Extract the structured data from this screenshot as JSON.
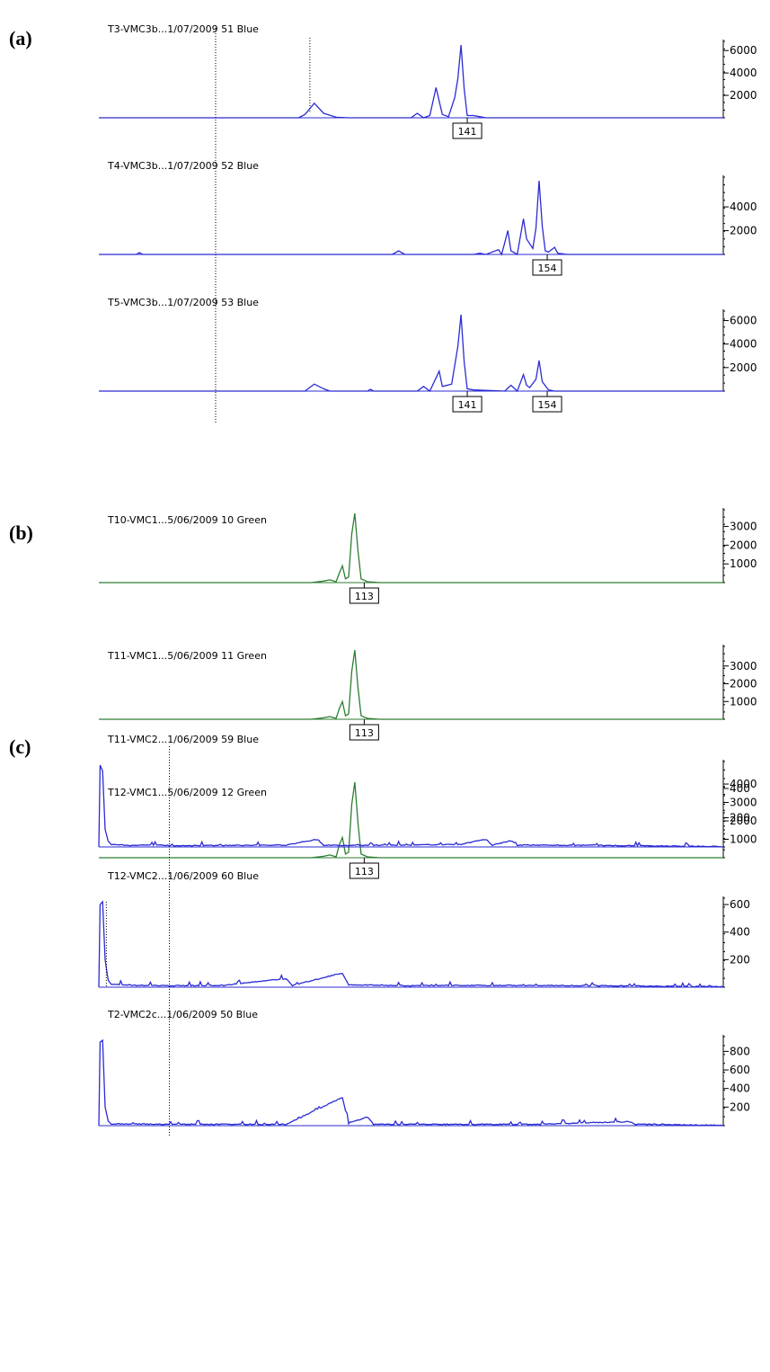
{
  "colors": {
    "blue": "#2b2bd4",
    "green": "#2e7d32",
    "axis": "#000000",
    "marker": "#000000"
  },
  "chart_data": [
    {
      "panel": "(a)",
      "type": "line",
      "traces": [
        {
          "title": "T3-VMC3b...1/07/2009 51 Blue",
          "color": "blue",
          "ymax": 6500,
          "yticks": [
            "6000",
            "4000",
            "2000"
          ],
          "ytick_values": [
            6000,
            4000,
            2000
          ],
          "points": [
            [
              0,
              0
            ],
            [
              0.32,
              0
            ],
            [
              0.33,
              300
            ],
            [
              0.345,
              1300
            ],
            [
              0.36,
              400
            ],
            [
              0.38,
              50
            ],
            [
              0.4,
              0
            ],
            [
              0.5,
              0
            ],
            [
              0.51,
              400
            ],
            [
              0.52,
              0
            ],
            [
              0.53,
              200
            ],
            [
              0.54,
              2700
            ],
            [
              0.55,
              300
            ],
            [
              0.56,
              100
            ],
            [
              0.57,
              1800
            ],
            [
              0.575,
              3500
            ],
            [
              0.58,
              6500
            ],
            [
              0.585,
              2600
            ],
            [
              0.59,
              200
            ],
            [
              0.6,
              200
            ],
            [
              0.61,
              100
            ],
            [
              0.62,
              0
            ],
            [
              1,
              0
            ]
          ],
          "markers": [
            {
              "label": "141",
              "x": 0.567
            }
          ]
        },
        {
          "title": "T4-VMC3b...1/07/2009 52 Blue",
          "color": "blue",
          "ymax": 6200,
          "yticks": [
            "4000",
            "2000"
          ],
          "ytick_values": [
            4000,
            2000
          ],
          "points": [
            [
              0,
              0
            ],
            [
              0.06,
              0
            ],
            [
              0.065,
              150
            ],
            [
              0.07,
              0
            ],
            [
              0.47,
              0
            ],
            [
              0.48,
              300
            ],
            [
              0.49,
              0
            ],
            [
              0.6,
              0
            ],
            [
              0.61,
              100
            ],
            [
              0.62,
              0
            ],
            [
              0.64,
              400
            ],
            [
              0.645,
              0
            ],
            [
              0.65,
              1000
            ],
            [
              0.655,
              2000
            ],
            [
              0.66,
              300
            ],
            [
              0.67,
              0
            ],
            [
              0.68,
              3000
            ],
            [
              0.685,
              1300
            ],
            [
              0.695,
              500
            ],
            [
              0.7,
              2200
            ],
            [
              0.705,
              6200
            ],
            [
              0.71,
              2400
            ],
            [
              0.715,
              300
            ],
            [
              0.72,
              200
            ],
            [
              0.73,
              600
            ],
            [
              0.735,
              100
            ],
            [
              0.75,
              0
            ],
            [
              1,
              0
            ]
          ],
          "markers": [
            {
              "label": "154",
              "x": 0.695
            }
          ]
        },
        {
          "title": "T5-VMC3b...1/07/2009 53 Blue",
          "color": "blue",
          "ymax": 6500,
          "yticks": [
            "6000",
            "4000",
            "2000"
          ],
          "ytick_values": [
            6000,
            4000,
            2000
          ],
          "points": [
            [
              0,
              0
            ],
            [
              0.33,
              0
            ],
            [
              0.345,
              600
            ],
            [
              0.36,
              200
            ],
            [
              0.37,
              0
            ],
            [
              0.43,
              0
            ],
            [
              0.435,
              150
            ],
            [
              0.44,
              0
            ],
            [
              0.51,
              0
            ],
            [
              0.52,
              400
            ],
            [
              0.53,
              0
            ],
            [
              0.545,
              1700
            ],
            [
              0.55,
              400
            ],
            [
              0.565,
              600
            ],
            [
              0.575,
              3800
            ],
            [
              0.58,
              6500
            ],
            [
              0.585,
              2500
            ],
            [
              0.59,
              200
            ],
            [
              0.6,
              100
            ],
            [
              0.65,
              0
            ],
            [
              0.66,
              500
            ],
            [
              0.67,
              0
            ],
            [
              0.68,
              1400
            ],
            [
              0.685,
              500
            ],
            [
              0.69,
              300
            ],
            [
              0.7,
              1000
            ],
            [
              0.705,
              2600
            ],
            [
              0.71,
              800
            ],
            [
              0.72,
              100
            ],
            [
              0.73,
              0
            ],
            [
              1,
              0
            ]
          ],
          "markers": [
            {
              "label": "141",
              "x": 0.567
            },
            {
              "label": "154",
              "x": 0.695
            }
          ]
        }
      ],
      "dotted_lines_x": [
        0.187,
        0.338
      ]
    },
    {
      "panel": "(b)",
      "type": "line",
      "traces": [
        {
          "title": "T10-VMC1...5/06/2009 10 Green",
          "color": "green",
          "ymax": 3700,
          "yticks": [
            "3000",
            "2000",
            "1000"
          ],
          "ytick_values": [
            3000,
            2000,
            1000
          ],
          "points": [
            [
              0,
              0
            ],
            [
              0.34,
              0
            ],
            [
              0.36,
              80
            ],
            [
              0.37,
              150
            ],
            [
              0.38,
              50
            ],
            [
              0.385,
              500
            ],
            [
              0.39,
              900
            ],
            [
              0.395,
              200
            ],
            [
              0.4,
              300
            ],
            [
              0.405,
              2600
            ],
            [
              0.41,
              3700
            ],
            [
              0.415,
              1700
            ],
            [
              0.42,
              200
            ],
            [
              0.43,
              50
            ],
            [
              0.45,
              0
            ],
            [
              1,
              0
            ]
          ],
          "markers": [
            {
              "label": "113",
              "x": 0.402
            }
          ]
        },
        {
          "title": "T11-VMC1...5/06/2009 11 Green",
          "color": "green",
          "ymax": 3900,
          "yticks": [
            "3000",
            "2000",
            "1000"
          ],
          "ytick_values": [
            3000,
            2000,
            1000
          ],
          "points": [
            [
              0,
              0
            ],
            [
              0.34,
              0
            ],
            [
              0.36,
              80
            ],
            [
              0.37,
              150
            ],
            [
              0.38,
              50
            ],
            [
              0.385,
              600
            ],
            [
              0.39,
              1000
            ],
            [
              0.395,
              200
            ],
            [
              0.4,
              300
            ],
            [
              0.405,
              2700
            ],
            [
              0.41,
              3900
            ],
            [
              0.415,
              1800
            ],
            [
              0.42,
              200
            ],
            [
              0.43,
              50
            ],
            [
              0.45,
              0
            ],
            [
              1,
              0
            ]
          ],
          "markers": [
            {
              "label": "113",
              "x": 0.402
            }
          ]
        },
        {
          "title": "T12-VMC1...5/06/2009 12 Green",
          "color": "green",
          "ymax": 4100,
          "yticks": [
            "4000",
            "3000",
            "2000",
            "1000"
          ],
          "ytick_values": [
            4000,
            3000,
            2000,
            1000
          ],
          "points": [
            [
              0,
              0
            ],
            [
              0.34,
              0
            ],
            [
              0.36,
              80
            ],
            [
              0.37,
              150
            ],
            [
              0.38,
              50
            ],
            [
              0.385,
              700
            ],
            [
              0.39,
              1100
            ],
            [
              0.395,
              200
            ],
            [
              0.4,
              300
            ],
            [
              0.405,
              2900
            ],
            [
              0.41,
              4100
            ],
            [
              0.415,
              1900
            ],
            [
              0.42,
              200
            ],
            [
              0.43,
              50
            ],
            [
              0.45,
              0
            ],
            [
              1,
              0
            ]
          ],
          "markers": [
            {
              "label": "113",
              "x": 0.402
            }
          ]
        }
      ]
    },
    {
      "panel": "(c)",
      "type": "line",
      "traces": [
        {
          "title": "T11-VMC2...1/06/2009 59 Blue",
          "color": "blue",
          "ymax": 560,
          "yticks": [
            "400",
            "200"
          ],
          "ytick_values": [
            400,
            200
          ],
          "points": [
            [
              0,
              0
            ],
            [
              0.002,
              560
            ],
            [
              0.006,
              520
            ],
            [
              0.01,
              120
            ],
            [
              0.015,
              40
            ],
            [
              0.02,
              15
            ],
            [
              0.05,
              8
            ],
            [
              0.08,
              12
            ],
            [
              0.12,
              6
            ],
            [
              0.2,
              8
            ],
            [
              0.3,
              10
            ],
            [
              0.35,
              50
            ],
            [
              0.36,
              10
            ],
            [
              0.4,
              8
            ],
            [
              0.5,
              10
            ],
            [
              0.58,
              15
            ],
            [
              0.62,
              50
            ],
            [
              0.63,
              10
            ],
            [
              0.66,
              40
            ],
            [
              0.67,
              10
            ],
            [
              0.8,
              8
            ],
            [
              1,
              0
            ]
          ],
          "noise": true
        },
        {
          "title": "T12-VMC2...1/06/2009 60 Blue",
          "color": "blue",
          "ymax": 620,
          "yticks": [
            "600",
            "400",
            "200"
          ],
          "ytick_values": [
            600,
            400,
            200
          ],
          "points": [
            [
              0,
              0
            ],
            [
              0.002,
              600
            ],
            [
              0.006,
              620
            ],
            [
              0.01,
              200
            ],
            [
              0.015,
              50
            ],
            [
              0.02,
              20
            ],
            [
              0.06,
              10
            ],
            [
              0.12,
              8
            ],
            [
              0.2,
              10
            ],
            [
              0.3,
              60
            ],
            [
              0.31,
              10
            ],
            [
              0.39,
              100
            ],
            [
              0.4,
              15
            ],
            [
              0.5,
              8
            ],
            [
              0.6,
              10
            ],
            [
              0.8,
              8
            ],
            [
              1,
              0
            ]
          ],
          "noise": true
        },
        {
          "title": "T2-VMC2c...1/06/2009 50 Blue",
          "color": "blue",
          "ymax": 920,
          "yticks": [
            "800",
            "600",
            "400",
            "200"
          ],
          "ytick_values": [
            800,
            600,
            400,
            200
          ],
          "points": [
            [
              0,
              0
            ],
            [
              0.002,
              900
            ],
            [
              0.006,
              920
            ],
            [
              0.01,
              200
            ],
            [
              0.015,
              50
            ],
            [
              0.02,
              15
            ],
            [
              0.1,
              10
            ],
            [
              0.3,
              10
            ],
            [
              0.39,
              300
            ],
            [
              0.4,
              20
            ],
            [
              0.43,
              90
            ],
            [
              0.44,
              10
            ],
            [
              0.55,
              10
            ],
            [
              0.7,
              10
            ],
            [
              0.85,
              40
            ],
            [
              0.86,
              10
            ],
            [
              1,
              0
            ]
          ],
          "noise": true
        }
      ],
      "dotted_lines_x": [
        0.113,
        0.012
      ]
    }
  ]
}
